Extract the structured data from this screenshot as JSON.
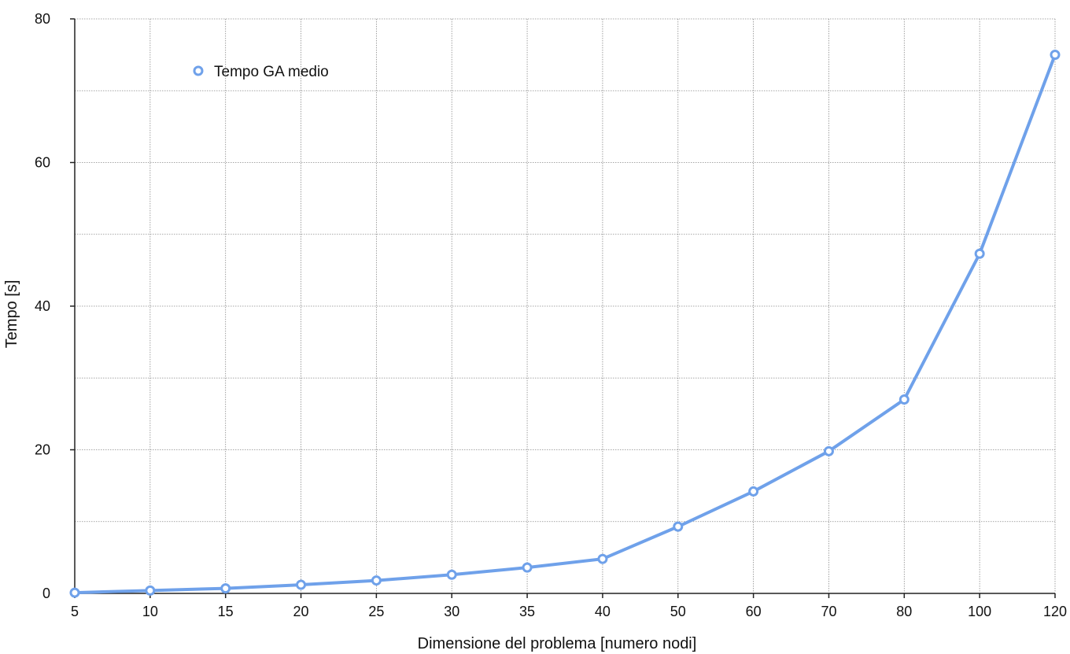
{
  "chart_data": {
    "type": "line",
    "xlabel": "Dimensione del problema [numero nodi]",
    "ylabel": "Tempo [s]",
    "categories": [
      "5",
      "10",
      "15",
      "20",
      "25",
      "30",
      "35",
      "40",
      "50",
      "60",
      "70",
      "80",
      "100",
      "120"
    ],
    "ylim": [
      0,
      80
    ],
    "y_ticks": [
      "0",
      "20",
      "40",
      "60",
      "80"
    ],
    "grid": true,
    "legend_position": "top-left",
    "series": [
      {
        "name": "Tempo GA medio",
        "color": "#6fa1ea",
        "values": [
          0.1,
          0.4,
          0.7,
          1.2,
          1.8,
          2.6,
          3.6,
          4.8,
          9.3,
          14.2,
          19.8,
          27.0,
          47.3,
          75.0
        ]
      }
    ]
  }
}
